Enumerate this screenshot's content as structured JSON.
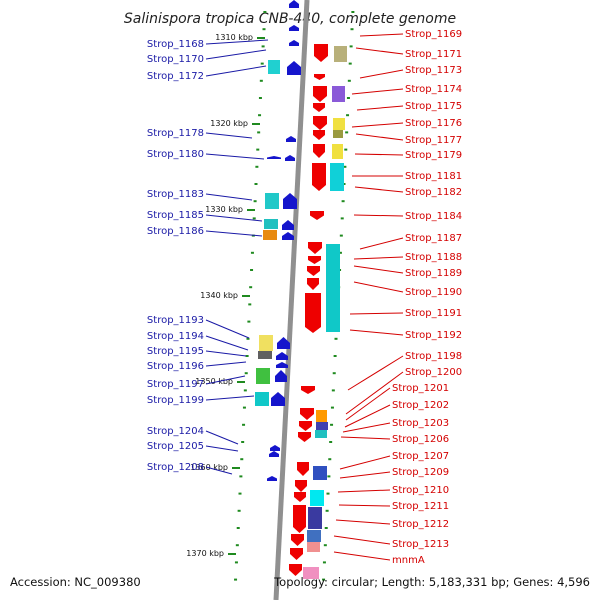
{
  "title": "Salinispora tropica CNB-440, complete genome",
  "footer": {
    "accession": "Accession: NC_009380",
    "info": "Topology: circular; Length: 5,183,331 bp; Genes: 4,596"
  },
  "scale_ticks": [
    "1310 kbp",
    "1320 kbp",
    "1330 kbp",
    "1340 kbp",
    "1350 kbp",
    "1360 kbp",
    "1370 kbp"
  ],
  "left_labels": [
    "Strop_1168",
    "Strop_1170",
    "Strop_1172",
    "Strop_1178",
    "Strop_1180",
    "Strop_1183",
    "Strop_1185",
    "Strop_1186",
    "Strop_1193",
    "Strop_1194",
    "Strop_1195",
    "Strop_1196",
    "Strop_1197",
    "Strop_1199",
    "Strop_1204",
    "Strop_1205",
    "Strop_1208"
  ],
  "right_labels": [
    "Strop_1169",
    "Strop_1171",
    "Strop_1173",
    "Strop_1174",
    "Strop_1175",
    "Strop_1176",
    "Strop_1177",
    "Strop_1179",
    "Strop_1181",
    "Strop_1182",
    "Strop_1184",
    "Strop_1187",
    "Strop_1188",
    "Strop_1189",
    "Strop_1190",
    "Strop_1191",
    "Strop_1192",
    "Strop_1198",
    "Strop_1200",
    "Strop_1201",
    "Strop_1202",
    "Strop_1203",
    "Strop_1206",
    "Strop_1207",
    "Strop_1209",
    "Strop_1210",
    "Strop_1211",
    "Strop_1212",
    "Strop_1213",
    "mnmA"
  ],
  "colors": {
    "backbone": "#8c8c8c",
    "forward_gene": "#ee0000",
    "reverse_gene": "#1515cc",
    "tick": "#1f8a1f",
    "left_label": "#1a1aa6",
    "right_label": "#d40000"
  }
}
